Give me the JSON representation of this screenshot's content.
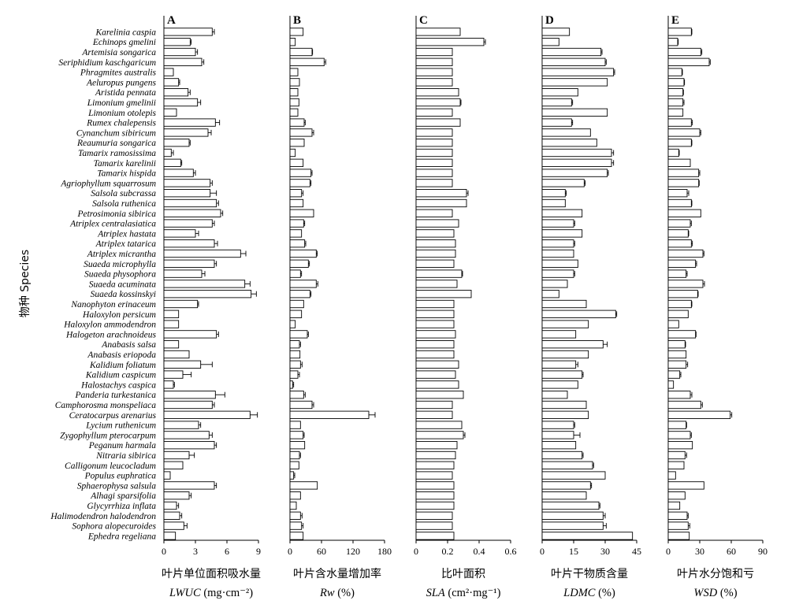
{
  "chart_data": {
    "type": "bar",
    "orientation": "horizontal",
    "ylabel": "物种  Species",
    "species": [
      "Karelinia caspia",
      "Echinops gmelini",
      "Artemisia songarica",
      "Seriphidium kaschgaricum",
      "Phragmites australis",
      "Aeluropus pungens",
      "Aristida pennata",
      "Limonium gmelinii",
      "Limonium otolepis",
      "Rumex chalepensis",
      "Cynanchum sibiricum",
      "Reaumuria songarica",
      "Tamarix ramosissima",
      "Tamarix karelinii",
      "Tamarix hispida",
      "Agriophyllum squarrosum",
      "Salsola subcrassa",
      "Salsola ruthenica",
      "Petrosimonia sibirica",
      "Atriplex centralasiatica",
      "Atriplex hastata",
      "Atriplex tatarica",
      "Atriplex micrantha",
      "Suaeda microphylla",
      "Suaeda physophora",
      "Suaeda acuminata",
      "Suaeda kossinskyi",
      "Nanophyton erinaceum",
      "Haloxylon persicum",
      "Haloxylon ammodendron",
      "Halogeton arachnoideus",
      "Anabasis salsa",
      "Anabasis eriopoda",
      "Kalidium foliatum",
      "Kalidium caspicum",
      "Halostachys caspica",
      "Panderia turkestanica",
      "Camphorosma monspeliaca",
      "Ceratocarpus arenarius",
      "Lycium ruthenicum",
      "Zygophyllum pterocarpum",
      "Peganum harmala",
      "Nitraria sibirica",
      "Calligonum leucocladum",
      "Populus euphratica",
      "Sphaerophysa salsula",
      "Alhagi sparsifolia",
      "Glycyrrhiza inflata",
      "Halimodendron halodendron",
      "Sophora alopecuroides",
      "Ephedra regeliana"
    ],
    "panels": [
      {
        "letter": "A",
        "xlabel_cn": "叶片单位面积吸水量",
        "xlabel_en": "LWUC",
        "xunit": "(mg·cm⁻²)",
        "xlim": [
          0,
          9
        ],
        "xticks": [
          "0",
          "3",
          "6",
          "9"
        ],
        "values": [
          4.6,
          2.5,
          3.0,
          3.6,
          0.9,
          1.4,
          2.3,
          3.2,
          1.2,
          4.9,
          4.2,
          2.4,
          0.7,
          1.6,
          2.8,
          4.4,
          4.4,
          5.0,
          5.4,
          4.6,
          3.0,
          4.8,
          7.3,
          4.8,
          3.6,
          7.7,
          8.3,
          3.2,
          1.4,
          1.4,
          5.0,
          1.4,
          2.4,
          3.5,
          1.8,
          0.9,
          4.9,
          4.6,
          8.2,
          3.3,
          4.3,
          4.8,
          2.4,
          1.8,
          0.6,
          4.8,
          2.4,
          1.2,
          1.5,
          1.9,
          1.1
        ],
        "errors": [
          0.2,
          0.1,
          0.2,
          0.2,
          0.0,
          0.1,
          0.2,
          0.3,
          0.0,
          0.4,
          0.3,
          0.1,
          0.2,
          0.1,
          0.2,
          0.2,
          0.6,
          0.2,
          0.2,
          0.2,
          0.3,
          0.3,
          0.5,
          0.2,
          0.3,
          0.5,
          0.5,
          0.1,
          0.0,
          0.0,
          0.2,
          0.0,
          0.0,
          1.1,
          0.8,
          0.1,
          0.9,
          0.2,
          0.7,
          0.2,
          0.3,
          0.2,
          0.5,
          0.0,
          0.0,
          0.2,
          0.2,
          0.2,
          0.2,
          0.3,
          0.0
        ]
      },
      {
        "letter": "B",
        "xlabel_cn": "叶片含水量增加率",
        "xlabel_en": "Rw",
        "xunit": "(%)",
        "xlim": [
          0,
          180
        ],
        "xticks": [
          "0",
          "60",
          "120",
          "180"
        ],
        "values": [
          25,
          10,
          42,
          65,
          15,
          18,
          15,
          17,
          15,
          27,
          42,
          27,
          10,
          25,
          40,
          38,
          22,
          25,
          45,
          26,
          22,
          28,
          50,
          35,
          20,
          50,
          38,
          26,
          22,
          10,
          33,
          18,
          19,
          20,
          15,
          5,
          26,
          42,
          150,
          20,
          25,
          28,
          18,
          17,
          7,
          52,
          20,
          12,
          20,
          22,
          25
        ],
        "errors": [
          0,
          0,
          1,
          3,
          0,
          0,
          0,
          0,
          0,
          2,
          3,
          0,
          0,
          0,
          2,
          2,
          3,
          0,
          0,
          2,
          0,
          2,
          2,
          2,
          2,
          3,
          2,
          0,
          0,
          0,
          2,
          2,
          0,
          3,
          3,
          2,
          3,
          3,
          12,
          0,
          2,
          0,
          2,
          0,
          2,
          0,
          0,
          0,
          3,
          3,
          0
        ]
      },
      {
        "letter": "C",
        "xlabel_cn": "比叶面积",
        "xlabel_en": "SLA",
        "xunit": "(cm²·mg⁻¹)",
        "xlim": [
          0,
          0.6
        ],
        "xticks": [
          "0",
          "0.2",
          "0.4",
          "0.6"
        ],
        "values": [
          0.28,
          0.43,
          0.23,
          0.23,
          0.23,
          0.23,
          0.27,
          0.28,
          0.23,
          0.28,
          0.23,
          0.23,
          0.23,
          0.23,
          0.23,
          0.23,
          0.32,
          0.32,
          0.23,
          0.27,
          0.24,
          0.25,
          0.25,
          0.24,
          0.29,
          0.26,
          0.35,
          0.24,
          0.24,
          0.24,
          0.25,
          0.24,
          0.24,
          0.27,
          0.25,
          0.27,
          0.3,
          0.23,
          0.23,
          0.29,
          0.3,
          0.26,
          0.25,
          0.24,
          0.23,
          0.24,
          0.24,
          0.24,
          0.23,
          0.23,
          0.24
        ],
        "errors": [
          0,
          0.01,
          0,
          0,
          0,
          0,
          0,
          0.005,
          0,
          0,
          0,
          0,
          0,
          0,
          0,
          0,
          0.01,
          0,
          0,
          0,
          0,
          0,
          0,
          0,
          0.005,
          0,
          0,
          0,
          0,
          0,
          0,
          0,
          0,
          0,
          0,
          0,
          0,
          0,
          0,
          0,
          0.01,
          0,
          0,
          0,
          0,
          0,
          0,
          0,
          0,
          0,
          0
        ]
      },
      {
        "letter": "D",
        "xlabel_cn": "叶片干物质含量",
        "xlabel_en": "LDMC",
        "xunit": "(%)",
        "xlim": [
          0,
          45
        ],
        "xticks": [
          "0",
          "15",
          "30",
          "45"
        ],
        "values": [
          13,
          8,
          28,
          30,
          34,
          31,
          17,
          14,
          31,
          14,
          23,
          26,
          33,
          33,
          31,
          20,
          11,
          11,
          19,
          15,
          19,
          15,
          15,
          17,
          15,
          12,
          8,
          21,
          35,
          22,
          16,
          29,
          22,
          16,
          19,
          17,
          12,
          21,
          22,
          15,
          15,
          16,
          19,
          24,
          30,
          23,
          21,
          27,
          29,
          29,
          43
        ],
        "errors": [
          0,
          0,
          0.5,
          0.5,
          0.5,
          0,
          0,
          0.5,
          0,
          0.5,
          0,
          0,
          1,
          1,
          0.5,
          0.5,
          0.5,
          0,
          0,
          0.5,
          0,
          0.5,
          0,
          0,
          0.5,
          0,
          0,
          0,
          0.5,
          0,
          0,
          2,
          0,
          1,
          0.5,
          0,
          0,
          0,
          0,
          0.5,
          3,
          0,
          0.5,
          0.5,
          0,
          0.5,
          0,
          0.5,
          1,
          1.5,
          0
        ]
      },
      {
        "letter": "E",
        "xlabel_cn": "叶片水分饱和亏",
        "xlabel_en": "WSD",
        "xunit": "(%)",
        "xlim": [
          0,
          90
        ],
        "xticks": [
          "0",
          "30",
          "60",
          "90"
        ],
        "values": [
          22,
          9,
          31,
          39,
          13,
          15,
          14,
          14,
          14,
          22,
          30,
          22,
          10,
          21,
          29,
          29,
          18,
          22,
          31,
          21,
          19,
          22,
          33,
          26,
          17,
          33,
          28,
          22,
          19,
          10,
          26,
          16,
          17,
          17,
          11,
          5,
          21,
          31,
          59,
          17,
          21,
          23,
          16,
          15,
          7,
          34,
          16,
          11,
          18,
          19,
          20
        ],
        "errors": [
          0.5,
          0.5,
          1,
          1,
          0.5,
          0.5,
          0.5,
          1,
          0,
          1,
          1,
          0.5,
          0.5,
          0,
          1,
          0.5,
          1.5,
          0.5,
          0,
          1,
          0.5,
          1,
          1,
          1,
          1,
          1.5,
          0.5,
          0.5,
          0,
          0,
          0.5,
          0.5,
          0,
          1.5,
          1,
          0,
          1.5,
          1.5,
          1.5,
          0.5,
          1,
          0,
          1.5,
          0,
          0,
          0,
          0,
          0,
          1,
          1.5,
          0
        ]
      }
    ]
  }
}
